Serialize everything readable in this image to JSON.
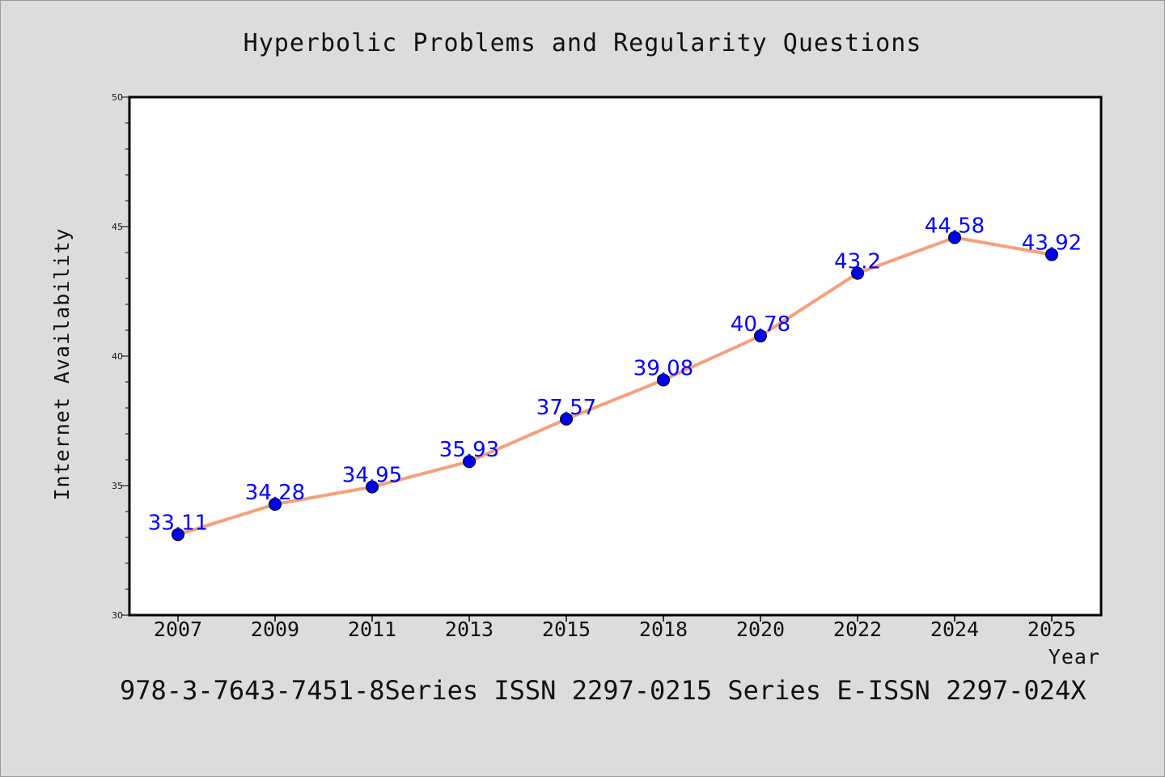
{
  "chart_data": {
    "type": "line",
    "title": "Hyperbolic Problems and Regularity Questions",
    "xlabel": "Year",
    "ylabel": "Internet Availability",
    "categories": [
      "2007",
      "2009",
      "2011",
      "2013",
      "2015",
      "2018",
      "2020",
      "2022",
      "2024",
      "2025"
    ],
    "series": [
      {
        "values": [
          33.11,
          34.28,
          34.95,
          35.93,
          37.57,
          39.08,
          40.78,
          43.2,
          44.58,
          43.92
        ],
        "line_color": "#f4a07a",
        "marker_color": "#0000ee"
      }
    ],
    "data_labels": [
      "33.11",
      "34.28",
      "34.95",
      "35.93",
      "37.57",
      "39.08",
      "40.78",
      "43.2",
      "44.58",
      "43.92"
    ],
    "ylim": [
      30,
      50
    ],
    "yticks": [
      30,
      35,
      40,
      45,
      50
    ],
    "ytick_labels": [
      "30",
      "35",
      "40",
      "45",
      "50"
    ],
    "grid": false,
    "data_label_color": "#0000ff"
  },
  "footer": {
    "text": "978-3-7643-7451-8Series ISSN 2297-0215 Series E-ISSN 2297-024X"
  }
}
